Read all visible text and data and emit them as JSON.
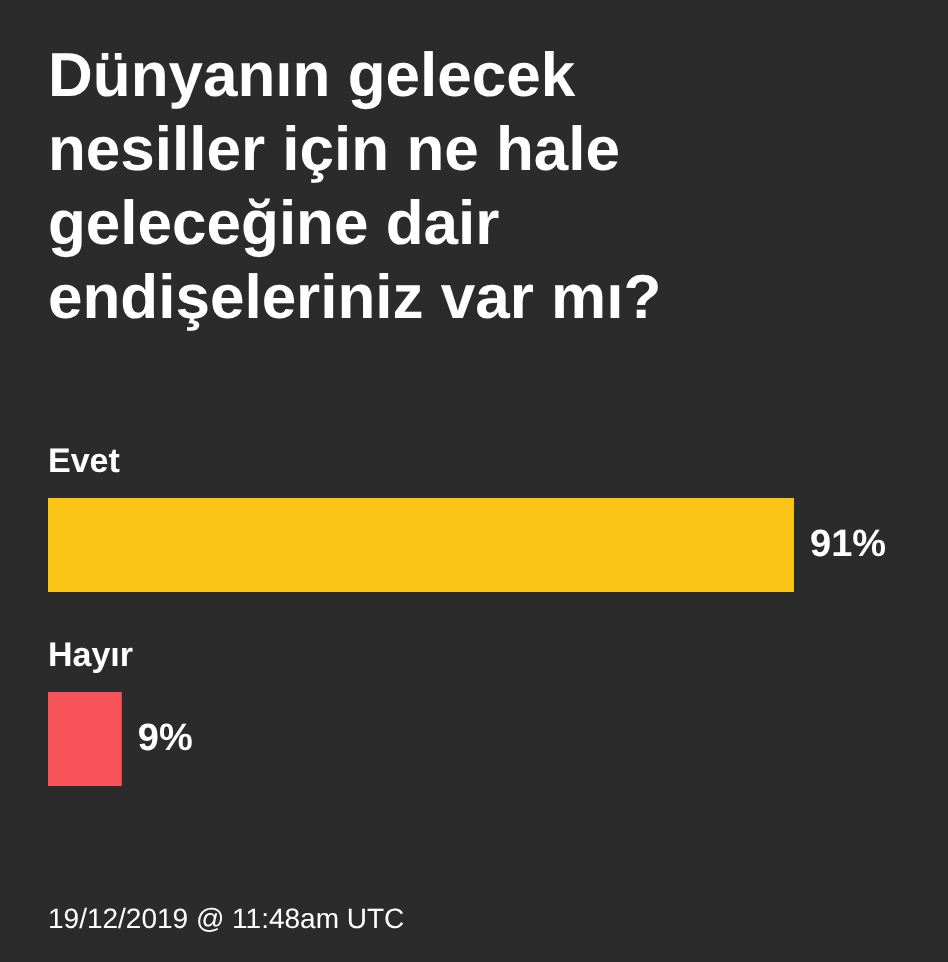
{
  "chart_data": {
    "type": "bar",
    "orientation": "horizontal",
    "title": "Dünyanın gelecek nesiller için ne hale geleceğine dair endişeleriniz var mı?",
    "categories": [
      "Evet",
      "Hayır"
    ],
    "values": [
      91,
      9
    ],
    "colors": [
      "#f9c416",
      "#f9545a"
    ],
    "value_labels": [
      "91%",
      "9%"
    ],
    "annotations": [
      "19/12/2019 @ 11:48am UTC"
    ]
  }
}
